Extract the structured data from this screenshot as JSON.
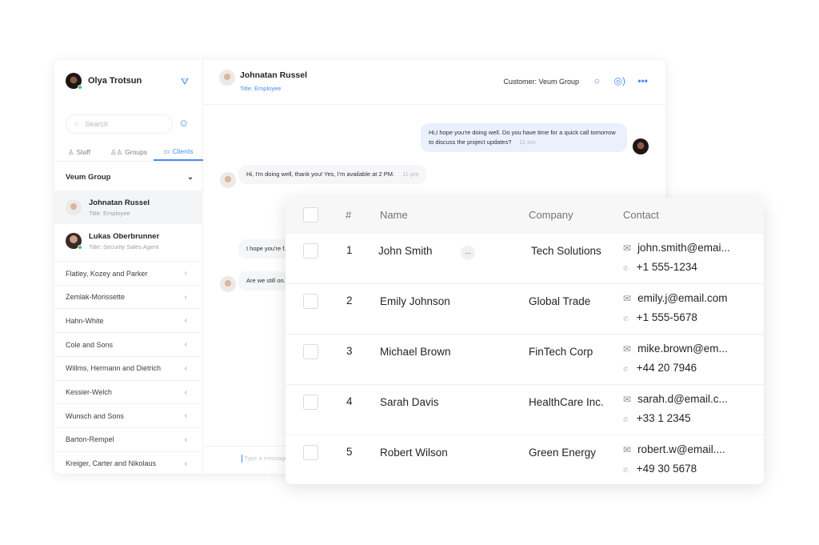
{
  "sidebar": {
    "user": "Olya Trotsun",
    "search_placeholder": "Search",
    "tabs": [
      "Staff",
      "Groups",
      "Clients"
    ],
    "active_tab": "Clients",
    "group": "Veum Group",
    "contacts": [
      {
        "name": "Johnatan Russel",
        "title": "Title: Employee"
      },
      {
        "name": "Lukas Oberbrunner",
        "title": "Title: Security Sales Agent"
      }
    ],
    "groups": [
      "Flatley, Kozey and Parker",
      "Zemlak-Morissette",
      "Hahn-White",
      "Cole and Sons",
      "Willms, Hermann and Dietrich",
      "Kessier-Welch",
      "Wunsch and Sons",
      "Barton-Rempel",
      "Kreiger, Carter and Nikolaus"
    ]
  },
  "chat": {
    "name": "Johnatan Russel",
    "title": "Title: Employee",
    "customer": "Customer: Veum Group",
    "messages": [
      {
        "text": "Hi,I hope you're doing well. Do you have time for a quick call tomorrow to discuss the project updates?",
        "time": "11 pm"
      },
      {
        "text": "Hi, I'm doing well, thank you! Yes, I'm available at 2 PM.",
        "time": "11 pm"
      },
      {
        "text": "I hope you're f... on the status ..."
      },
      {
        "text": "Are we still on..."
      }
    ],
    "input_placeholder": "Type a message"
  },
  "table": {
    "headers": [
      "#",
      "Name",
      "Company",
      "Contact"
    ],
    "rows": [
      {
        "n": "1",
        "name": "John Smith",
        "company": "Tech Solutions",
        "email": "john.smith@emai...",
        "phone": "+1 555-1234"
      },
      {
        "n": "2",
        "name": "Emily Johnson",
        "company": "Global Trade",
        "email": "emily.j@email.com",
        "phone": "+1 555-5678"
      },
      {
        "n": "3",
        "name": "Michael Brown",
        "company": "FinTech Corp",
        "email": "mike.brown@em...",
        "phone": "+44 20 7946"
      },
      {
        "n": "4",
        "name": "Sarah Davis",
        "company": "HealthCare Inc.",
        "email": "sarah.d@email.c...",
        "phone": "+33 1 2345"
      },
      {
        "n": "5",
        "name": "Robert Wilson",
        "company": "Green Energy",
        "email": "robert.w@email....",
        "phone": "+49 30 5678"
      }
    ],
    "more_label": "..."
  },
  "colors": {
    "accent": "#4a8bf5",
    "online": "#3cc36b"
  }
}
